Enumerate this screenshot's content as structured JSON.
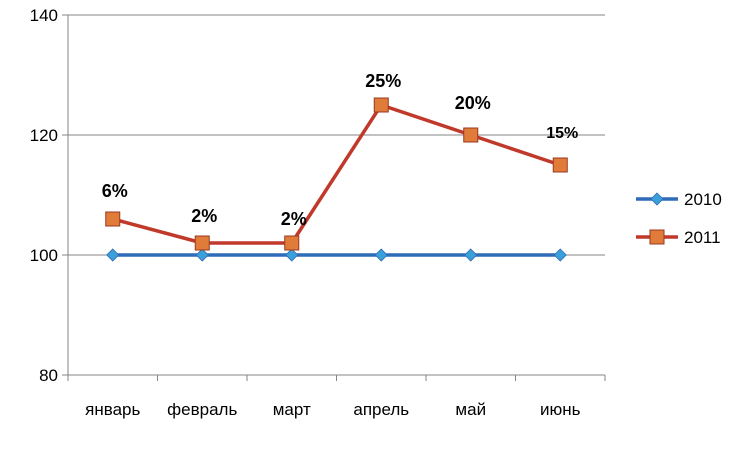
{
  "chart_data": {
    "type": "line",
    "categories": [
      "январь",
      "февраль",
      "март",
      "апрель",
      "май",
      "июнь"
    ],
    "y_ticks": [
      "80",
      "100",
      "120",
      "140"
    ],
    "ylim": [
      80,
      140
    ],
    "grid": true,
    "legend_position": "right",
    "series": [
      {
        "name": "2010",
        "color": "#2E6BB8",
        "marker_color": "#3B9FD9",
        "marker": "diamond",
        "values": [
          100,
          100,
          100,
          100,
          100,
          100
        ],
        "labels": []
      },
      {
        "name": "2011",
        "color": "#C0392B",
        "marker_color": "#E07B39",
        "marker": "square",
        "values": [
          106,
          102,
          102,
          125,
          120,
          115
        ],
        "labels": [
          "6%",
          "2%",
          "2%",
          "25%",
          "20%",
          "15%"
        ]
      }
    ]
  }
}
